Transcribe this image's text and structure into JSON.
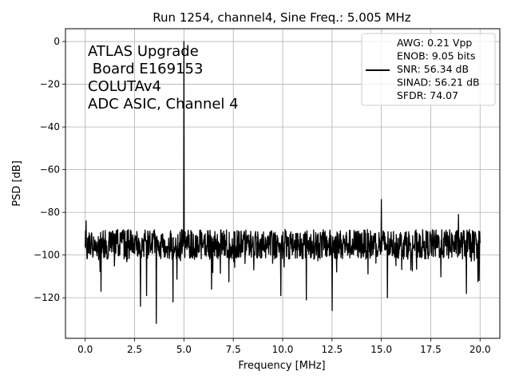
{
  "chart_data": {
    "type": "line",
    "title": "Run 1254, channel4, Sine Freq.: 5.005 MHz",
    "xlabel": "Frequency [MHz]",
    "ylabel": "PSD [dB]",
    "xlim": [
      -1.0,
      21.0
    ],
    "ylim": [
      -139,
      6
    ],
    "xticks": [
      0.0,
      2.5,
      5.0,
      7.5,
      10.0,
      12.5,
      15.0,
      17.5,
      20.0
    ],
    "xtick_labels": [
      "0.0",
      "2.5",
      "5.0",
      "7.5",
      "10.0",
      "12.5",
      "15.0",
      "17.5",
      "20.0"
    ],
    "yticks": [
      0,
      -20,
      -40,
      -60,
      -80,
      -100,
      -120
    ],
    "ytick_labels": [
      "0",
      "−20",
      "−40",
      "−60",
      "−80",
      "−100",
      "−120"
    ],
    "grid": true,
    "series_color": "#000000",
    "annotation_lines": [
      "ATLAS Upgrade",
      " Board E169153",
      "COLUTAv4",
      "ADC ASIC, Channel 4"
    ],
    "legend": {
      "placement": "top-right",
      "lines": [
        "AWG: 0.21 Vpp",
        "ENOB: 9.05 bits",
        "SNR: 56.34 dB",
        "SINAD: 56.21 dB",
        "SFDR: 74.07"
      ]
    },
    "noise_floor_db": -95,
    "peaks": [
      {
        "x": 5.005,
        "y": 0
      },
      {
        "x": 15.0,
        "y": -74
      },
      {
        "x": 18.9,
        "y": -81
      },
      {
        "x": 0.05,
        "y": -84
      }
    ],
    "dips": [
      {
        "x": 3.6,
        "y": -132
      },
      {
        "x": 2.8,
        "y": -124
      },
      {
        "x": 12.5,
        "y": -126
      },
      {
        "x": 11.2,
        "y": -121
      },
      {
        "x": 15.3,
        "y": -120
      },
      {
        "x": 4.45,
        "y": -122
      },
      {
        "x": 0.8,
        "y": -117
      },
      {
        "x": 3.1,
        "y": -119
      },
      {
        "x": 6.4,
        "y": -116
      },
      {
        "x": 9.9,
        "y": -119
      },
      {
        "x": 19.3,
        "y": -118
      }
    ]
  }
}
